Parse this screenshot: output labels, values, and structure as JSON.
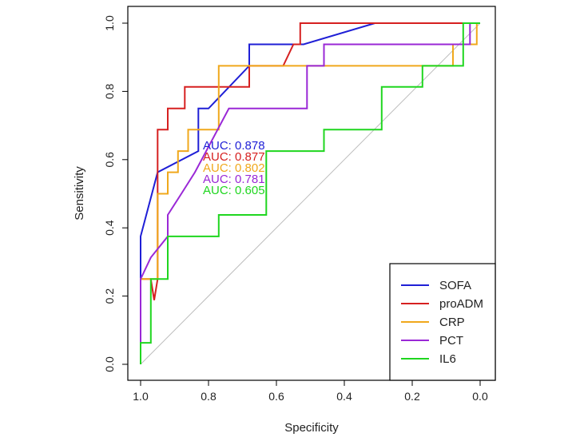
{
  "chart_data": {
    "type": "line",
    "title": "",
    "xlabel": "Specificity",
    "ylabel": "Sensitivity",
    "xlim": [
      1.0,
      0.0
    ],
    "ylim": [
      0.0,
      1.0
    ],
    "x_reversed": true,
    "xticks": [
      "1.0",
      "0.8",
      "0.6",
      "0.4",
      "0.2",
      "0.0"
    ],
    "yticks": [
      "0.0",
      "0.2",
      "0.4",
      "0.6",
      "0.8",
      "1.0"
    ],
    "grid": false,
    "reference_line": true,
    "legend_position": "bottom-right",
    "auc_labels": [
      {
        "text": "AUC: 0.878",
        "color": "#1f1fd6"
      },
      {
        "text": "AUC: 0.877",
        "color": "#d62020"
      },
      {
        "text": "AUC: 0.802",
        "color": "#f0a81c"
      },
      {
        "text": "AUC: 0.781",
        "color": "#9a28d6"
      },
      {
        "text": "AUC: 0.605",
        "color": "#1fd61f"
      }
    ],
    "series": [
      {
        "name": "SOFA",
        "color": "#1f1fd6",
        "points": [
          [
            1.0,
            0.0
          ],
          [
            1.0,
            0.375
          ],
          [
            0.95,
            0.563
          ],
          [
            0.83,
            0.625
          ],
          [
            0.83,
            0.75
          ],
          [
            0.8,
            0.75
          ],
          [
            0.68,
            0.875
          ],
          [
            0.68,
            0.938
          ],
          [
            0.52,
            0.938
          ],
          [
            0.31,
            1.0
          ],
          [
            0.0,
            1.0
          ]
        ]
      },
      {
        "name": "proADM",
        "color": "#d62020",
        "points": [
          [
            1.0,
            0.0
          ],
          [
            1.0,
            0.25
          ],
          [
            0.97,
            0.25
          ],
          [
            0.96,
            0.188
          ],
          [
            0.95,
            0.25
          ],
          [
            0.95,
            0.688
          ],
          [
            0.92,
            0.688
          ],
          [
            0.92,
            0.75
          ],
          [
            0.87,
            0.75
          ],
          [
            0.87,
            0.813
          ],
          [
            0.68,
            0.813
          ],
          [
            0.68,
            0.875
          ],
          [
            0.58,
            0.875
          ],
          [
            0.55,
            0.938
          ],
          [
            0.53,
            0.938
          ],
          [
            0.53,
            1.0
          ],
          [
            0.0,
            1.0
          ]
        ]
      },
      {
        "name": "CRP",
        "color": "#f0a81c",
        "points": [
          [
            1.0,
            0.0
          ],
          [
            1.0,
            0.25
          ],
          [
            0.95,
            0.25
          ],
          [
            0.95,
            0.5
          ],
          [
            0.92,
            0.5
          ],
          [
            0.92,
            0.563
          ],
          [
            0.89,
            0.563
          ],
          [
            0.89,
            0.625
          ],
          [
            0.86,
            0.625
          ],
          [
            0.86,
            0.688
          ],
          [
            0.77,
            0.688
          ],
          [
            0.77,
            0.875
          ],
          [
            0.08,
            0.875
          ],
          [
            0.08,
            0.938
          ],
          [
            0.01,
            0.938
          ],
          [
            0.01,
            1.0
          ],
          [
            0.0,
            1.0
          ]
        ]
      },
      {
        "name": "PCT",
        "color": "#9a28d6",
        "points": [
          [
            1.0,
            0.0
          ],
          [
            1.0,
            0.25
          ],
          [
            0.97,
            0.313
          ],
          [
            0.92,
            0.375
          ],
          [
            0.92,
            0.438
          ],
          [
            0.88,
            0.5
          ],
          [
            0.84,
            0.563
          ],
          [
            0.74,
            0.75
          ],
          [
            0.51,
            0.75
          ],
          [
            0.51,
            0.875
          ],
          [
            0.46,
            0.875
          ],
          [
            0.46,
            0.938
          ],
          [
            0.03,
            0.938
          ],
          [
            0.03,
            1.0
          ],
          [
            0.0,
            1.0
          ]
        ]
      },
      {
        "name": "IL6",
        "color": "#1fd61f",
        "points": [
          [
            1.0,
            0.0
          ],
          [
            1.0,
            0.063
          ],
          [
            0.97,
            0.063
          ],
          [
            0.97,
            0.25
          ],
          [
            0.92,
            0.25
          ],
          [
            0.92,
            0.375
          ],
          [
            0.77,
            0.375
          ],
          [
            0.77,
            0.438
          ],
          [
            0.63,
            0.438
          ],
          [
            0.63,
            0.625
          ],
          [
            0.46,
            0.625
          ],
          [
            0.46,
            0.688
          ],
          [
            0.29,
            0.688
          ],
          [
            0.29,
            0.813
          ],
          [
            0.17,
            0.813
          ],
          [
            0.17,
            0.875
          ],
          [
            0.05,
            0.875
          ],
          [
            0.05,
            1.0
          ],
          [
            0.0,
            1.0
          ]
        ]
      }
    ]
  }
}
